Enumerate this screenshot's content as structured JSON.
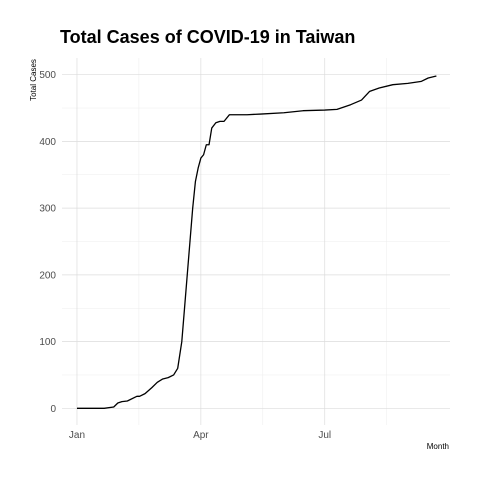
{
  "chart_data": {
    "type": "line",
    "title": "Total Cases of COVID-19 in Taiwan",
    "xlabel": "Month",
    "ylabel": "Total Cases",
    "x_ticks": [
      {
        "label": "Jan",
        "date": "2020-01-01"
      },
      {
        "label": "Apr",
        "date": "2020-04-01"
      },
      {
        "label": "Jul",
        "date": "2020-07-01"
      }
    ],
    "y_ticks": [
      0,
      100,
      200,
      300,
      400,
      500
    ],
    "xlim": [
      "2019-12-21",
      "2020-10-01"
    ],
    "ylim": [
      -25,
      525
    ],
    "grid": true,
    "legend": "none",
    "series": [
      {
        "color": "#000000",
        "x": [
          "2020-01-01",
          "2020-01-21",
          "2020-01-28",
          "2020-01-31",
          "2020-02-03",
          "2020-02-07",
          "2020-02-14",
          "2020-02-16",
          "2020-02-20",
          "2020-02-25",
          "2020-02-29",
          "2020-03-04",
          "2020-03-08",
          "2020-03-12",
          "2020-03-15",
          "2020-03-18",
          "2020-03-20",
          "2020-03-22",
          "2020-03-24",
          "2020-03-26",
          "2020-03-28",
          "2020-03-30",
          "2020-04-01",
          "2020-04-03",
          "2020-04-05",
          "2020-04-07",
          "2020-04-09",
          "2020-04-12",
          "2020-04-15",
          "2020-04-18",
          "2020-04-22",
          "2020-04-28",
          "2020-05-05",
          "2020-05-15",
          "2020-06-01",
          "2020-06-15",
          "2020-07-01",
          "2020-07-10",
          "2020-07-20",
          "2020-07-28",
          "2020-08-03",
          "2020-08-10",
          "2020-08-20",
          "2020-08-31",
          "2020-09-10",
          "2020-09-15",
          "2020-09-21"
        ],
        "y": [
          0,
          0,
          2,
          8,
          10,
          11,
          18,
          18,
          22,
          31,
          39,
          44,
          46,
          50,
          60,
          100,
          150,
          200,
          250,
          300,
          340,
          360,
          375,
          380,
          395,
          395,
          420,
          428,
          430,
          430,
          440,
          440,
          440,
          441,
          443,
          446,
          447,
          448,
          455,
          462,
          475,
          480,
          485,
          487,
          490,
          495,
          498
        ]
      }
    ]
  }
}
